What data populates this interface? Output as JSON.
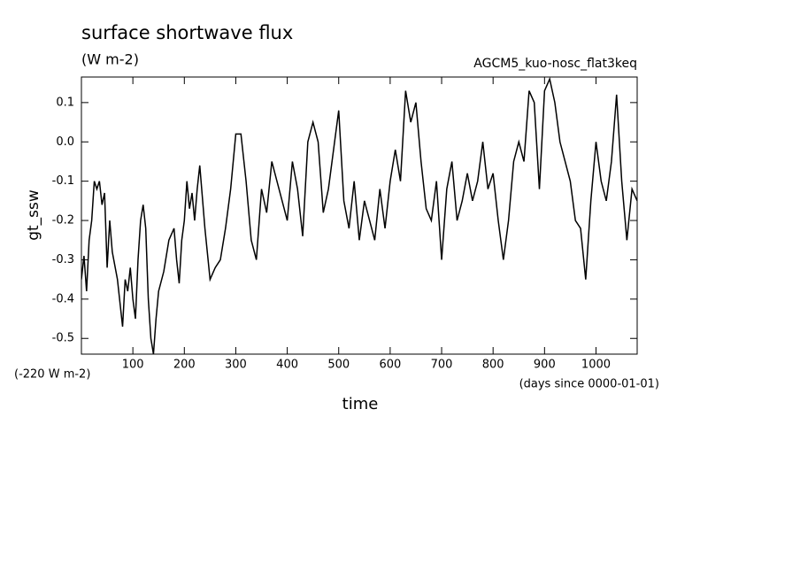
{
  "chart_data": {
    "type": "line",
    "title": "surface shortwave flux",
    "units": "(W m-2)",
    "subtitle": "AGCM5_kuo-nosc_flat3keq",
    "y_label": "gt_ssw",
    "x_label": "time",
    "offset_note": "(-220 W m-2)",
    "x_units": "(days since 0000-01-01)",
    "xlim": [
      0,
      1080
    ],
    "ylim": [
      -0.54,
      0.165
    ],
    "xticks": [
      100,
      200,
      300,
      400,
      500,
      600,
      700,
      800,
      900,
      1000
    ],
    "yticks": [
      0.1,
      {
        "value": 0,
        "label": "0.0"
      },
      -0.1,
      -0.2,
      -0.3,
      -0.4,
      -0.5
    ],
    "x": [
      0,
      5,
      10,
      15,
      20,
      25,
      30,
      35,
      40,
      45,
      50,
      55,
      60,
      70,
      80,
      85,
      90,
      95,
      100,
      105,
      110,
      115,
      120,
      125,
      130,
      135,
      140,
      145,
      150,
      160,
      170,
      180,
      185,
      190,
      195,
      200,
      205,
      210,
      215,
      220,
      225,
      230,
      240,
      250,
      260,
      270,
      280,
      290,
      300,
      310,
      320,
      330,
      340,
      350,
      360,
      370,
      380,
      390,
      400,
      410,
      420,
      430,
      440,
      450,
      460,
      470,
      480,
      490,
      500,
      510,
      520,
      530,
      540,
      550,
      560,
      570,
      580,
      590,
      600,
      610,
      620,
      630,
      640,
      650,
      660,
      670,
      680,
      690,
      700,
      710,
      720,
      730,
      740,
      750,
      760,
      770,
      780,
      790,
      800,
      810,
      820,
      830,
      840,
      850,
      860,
      870,
      880,
      890,
      900,
      910,
      920,
      930,
      940,
      950,
      960,
      970,
      980,
      990,
      1000,
      1010,
      1020,
      1030,
      1040,
      1050,
      1060,
      1070,
      1080
    ],
    "series": [
      {
        "color": "#000000",
        "values": [
          -0.35,
          -0.29,
          -0.38,
          -0.25,
          -0.2,
          -0.1,
          -0.12,
          -0.1,
          -0.16,
          -0.13,
          -0.32,
          -0.2,
          -0.28,
          -0.35,
          -0.47,
          -0.35,
          -0.38,
          -0.32,
          -0.4,
          -0.45,
          -0.3,
          -0.2,
          -0.16,
          -0.22,
          -0.4,
          -0.5,
          -0.54,
          -0.45,
          -0.38,
          -0.33,
          -0.25,
          -0.22,
          -0.3,
          -0.36,
          -0.25,
          -0.2,
          -0.1,
          -0.17,
          -0.13,
          -0.2,
          -0.12,
          -0.06,
          -0.22,
          -0.35,
          -0.32,
          -0.3,
          -0.22,
          -0.12,
          0.02,
          0.02,
          -0.1,
          -0.25,
          -0.3,
          -0.12,
          -0.18,
          -0.05,
          -0.1,
          -0.15,
          -0.2,
          -0.05,
          -0.12,
          -0.24,
          0.0,
          0.05,
          0.0,
          -0.18,
          -0.12,
          -0.02,
          0.08,
          -0.15,
          -0.22,
          -0.1,
          -0.25,
          -0.15,
          -0.2,
          -0.25,
          -0.12,
          -0.22,
          -0.1,
          -0.02,
          -0.1,
          0.13,
          0.05,
          0.1,
          -0.05,
          -0.17,
          -0.2,
          -0.1,
          -0.3,
          -0.12,
          -0.05,
          -0.2,
          -0.15,
          -0.08,
          -0.15,
          -0.1,
          0.0,
          -0.12,
          -0.08,
          -0.2,
          -0.3,
          -0.2,
          -0.05,
          0.0,
          -0.05,
          0.13,
          0.1,
          -0.12,
          0.13,
          0.16,
          0.1,
          0.0,
          -0.05,
          -0.1,
          -0.2,
          -0.22,
          -0.35,
          -0.15,
          0.0,
          -0.1,
          -0.15,
          -0.05,
          0.12,
          -0.1,
          -0.25,
          -0.12,
          -0.15
        ]
      }
    ]
  }
}
